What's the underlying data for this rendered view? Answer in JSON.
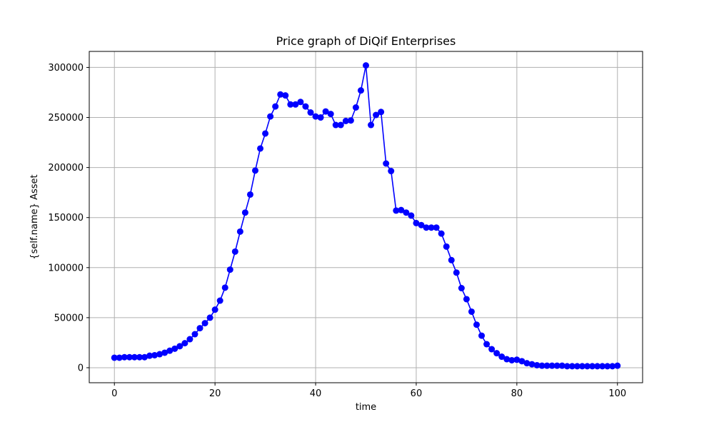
{
  "chart_data": {
    "type": "line",
    "title": "Price graph of DiQif Enterprises",
    "xlabel": "time",
    "ylabel": "{self.name} Asset",
    "xlim": [
      -5,
      105
    ],
    "ylim": [
      -15000,
      316000
    ],
    "xticks": [
      0,
      20,
      40,
      60,
      80,
      100
    ],
    "yticks": [
      0,
      50000,
      100000,
      150000,
      200000,
      250000,
      300000
    ],
    "grid": true,
    "line_color": "#0000ff",
    "marker": "circle",
    "series": [
      {
        "x": [
          0,
          1,
          2,
          3,
          4,
          5,
          6,
          7,
          8,
          9,
          10,
          11,
          12,
          13,
          14,
          15,
          16,
          17,
          18,
          19,
          20,
          21,
          22,
          23,
          24,
          25,
          26,
          27,
          28,
          29,
          30,
          31,
          32,
          33,
          34,
          35,
          36,
          37,
          38,
          39,
          40,
          41,
          42,
          43,
          44,
          45,
          46,
          47,
          48,
          49,
          50,
          51,
          52,
          53,
          54,
          55,
          56,
          57,
          58,
          59,
          60,
          61,
          62,
          63,
          64,
          65,
          66,
          67,
          68,
          69,
          70,
          71,
          72,
          73,
          74,
          75,
          76,
          77,
          78,
          79,
          80,
          81,
          82,
          83,
          84,
          85,
          86,
          87,
          88,
          89,
          90,
          91,
          92,
          93,
          94,
          95,
          96,
          97,
          98,
          99,
          100
        ],
        "values": [
          10000,
          10000,
          10500,
          10500,
          10500,
          10500,
          10500,
          12000,
          12500,
          13500,
          15000,
          17000,
          19000,
          21500,
          24500,
          28500,
          33500,
          39500,
          44500,
          50000,
          58000,
          67000,
          80000,
          98000,
          116000,
          136000,
          155000,
          173000,
          197000,
          219000,
          234000,
          251000,
          261000,
          273000,
          272000,
          263000,
          263000,
          265500,
          261000,
          255000,
          251000,
          250000,
          256000,
          253500,
          242500,
          242500,
          246500,
          247000,
          260000,
          277000,
          302000,
          242500,
          252500,
          255500,
          204000,
          196500,
          157000,
          157500,
          155000,
          152000,
          144500,
          142500,
          140000,
          140000,
          140000,
          134000,
          121000,
          107500,
          95000,
          79500,
          68500,
          56000,
          43000,
          32000,
          23500,
          18500,
          14500,
          11000,
          8500,
          7500,
          8000,
          6500,
          4500,
          3500,
          2500,
          2000,
          2000,
          2000,
          2000,
          2000,
          1500,
          1500,
          1500,
          1500,
          1500,
          1500,
          1500,
          1500,
          1500,
          1500,
          2000
        ]
      }
    ]
  }
}
